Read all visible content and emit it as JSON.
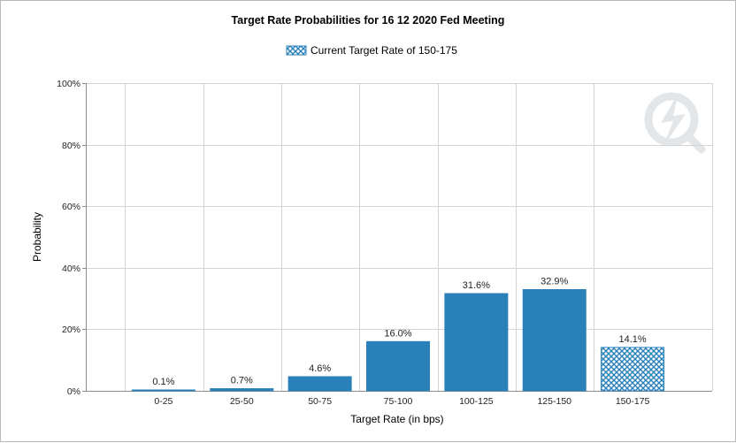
{
  "chart_data": {
    "type": "bar",
    "title": "Target Rate Probabilities for 16 12 2020 Fed Meeting",
    "xlabel": "Target Rate (in bps)",
    "ylabel": "Probability",
    "categories": [
      "0-25",
      "25-50",
      "50-75",
      "75-100",
      "100-125",
      "125-150",
      "150-175"
    ],
    "values": [
      0.1,
      0.7,
      4.6,
      16.0,
      31.6,
      32.9,
      14.1
    ],
    "data_labels": [
      "0.1%",
      "0.7%",
      "4.6%",
      "16.0%",
      "31.6%",
      "32.9%",
      "14.1%"
    ],
    "ylim": [
      0,
      100
    ],
    "yticks": [
      0,
      20,
      40,
      60,
      80,
      100
    ],
    "ytick_labels": [
      "0%",
      "20%",
      "40%",
      "60%",
      "80%",
      "100%"
    ],
    "grid": true,
    "legend": {
      "position": "top-center",
      "entries": [
        {
          "label": "Current Target Rate of 150-175",
          "style": "hatched"
        }
      ]
    },
    "highlight_category": "150-175",
    "colors": {
      "bar": "#2a80b9",
      "highlight_fill": "#ffffff",
      "highlight_hatch": "#2a80b9",
      "grid": "#d4d4d4"
    }
  },
  "watermark_icon": "lightning-q-logo"
}
